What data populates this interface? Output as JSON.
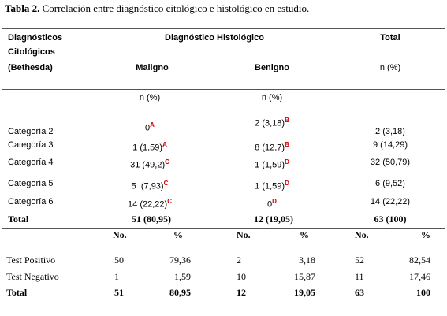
{
  "title": {
    "label": "Tabla 2.",
    "text": "Correlación entre diagnóstico citológico e histológico en estudio."
  },
  "header": {
    "row_label": [
      "Diagnósticos",
      "Citológicos",
      "(Bethesda)"
    ],
    "group": "Diagnóstico Histológico",
    "total": "Total",
    "maligno": "Maligno",
    "benigno": "Benigno",
    "total_unit": "n (%)",
    "maligno_unit": "n (%)",
    "benigno_unit": "n (%)"
  },
  "rows": [
    {
      "label": "Categoría 2",
      "maligno": {
        "value": "0",
        "note": "A"
      },
      "benigno": {
        "value": "2 (3,18)",
        "note": "B"
      },
      "total": "2 (3,18)"
    },
    {
      "label": "Categoría 3",
      "maligno": {
        "value": "1 (1,59)",
        "note": "A"
      },
      "benigno": {
        "value": "8 (12,7)",
        "note": "B"
      },
      "total": "9 (14,29)"
    },
    {
      "label": "Categoría 4",
      "maligno": {
        "value": "31 (49,2)",
        "note": "C"
      },
      "benigno": {
        "value": "1 (1,59)",
        "note": "D"
      },
      "total": "32 (50,79)"
    },
    {
      "label": "Categoría 5",
      "maligno": {
        "value": "5  (7,93)",
        "note": "C"
      },
      "benigno": {
        "value": "1 (1,59)",
        "note": "D"
      },
      "total": "6 (9,52)"
    },
    {
      "label": "Categoría 6",
      "maligno": {
        "value": "14 (22,22)",
        "note": "C"
      },
      "benigno": {
        "value": "0",
        "note": "D"
      },
      "total": "14 (22,22)"
    }
  ],
  "total_row": {
    "label": "Total",
    "maligno": "51 (80,95)",
    "benigno": "12 (19,05)",
    "total": "63 (100)"
  },
  "test_header": [
    "No.",
    "%",
    "No.",
    "%",
    "No.",
    "%"
  ],
  "test_rows": [
    [
      "Test Positivo",
      "50",
      "79,36",
      "2",
      "3,18",
      "52",
      "82,54"
    ],
    [
      "Test Negativo",
      "1",
      "1,59",
      "10",
      "15,87",
      "11",
      "17,46"
    ],
    [
      "Total",
      "51",
      "80,95",
      "12",
      "19,05",
      "63",
      "100"
    ]
  ]
}
